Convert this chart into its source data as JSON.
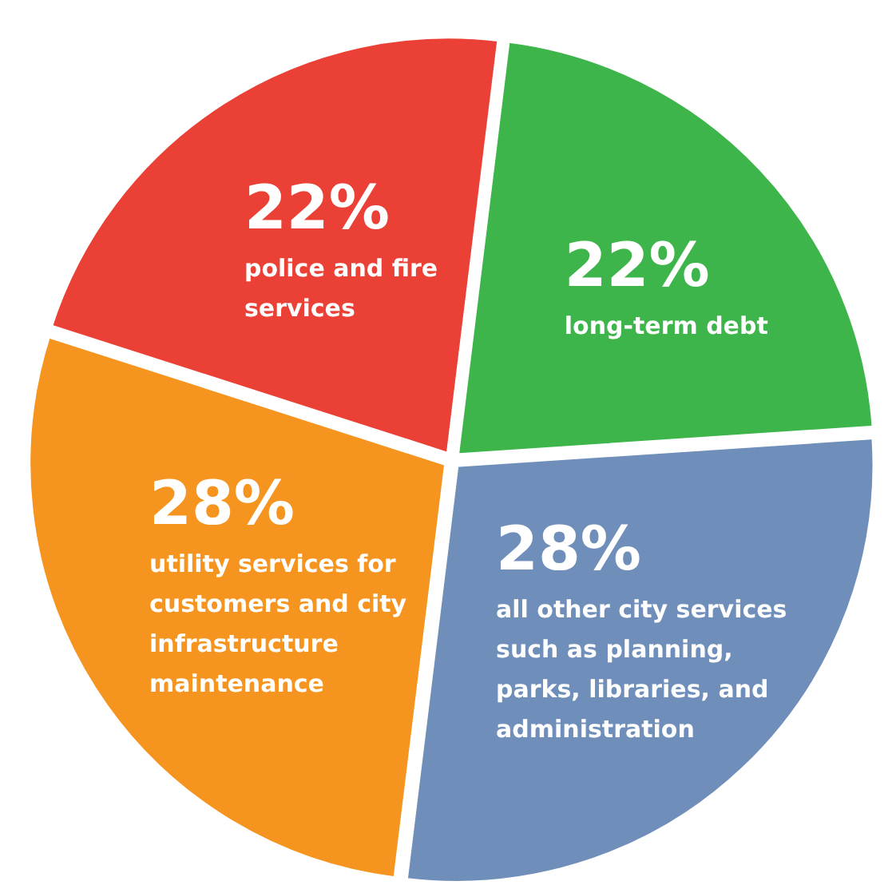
{
  "chart_data": {
    "type": "pie",
    "categories": [
      "long-term debt",
      "all other city services such as planning, parks, libraries, and administration",
      "utility services for customers and city infrastructure maintenance",
      "police and fire services"
    ],
    "values": [
      22,
      28,
      28,
      22
    ],
    "value_labels": [
      "22%",
      "28%",
      "28%",
      "22%"
    ],
    "colors": [
      "#3db54a",
      "#6f8fba",
      "#f5941f",
      "#ea4036"
    ]
  }
}
